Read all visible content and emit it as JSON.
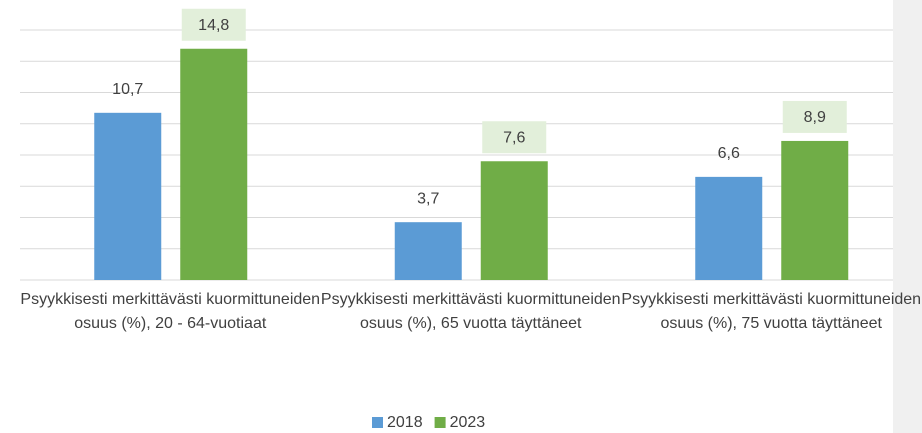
{
  "chart_data": {
    "type": "bar",
    "categories": [
      "Psyykkisesti merkittävästi kuormittuneiden osuus (%), 20 - 64-vuotiaat",
      "Psyykkisesti merkittävästi kuormittuneiden osuus (%), 65 vuotta täyttäneet",
      "Psyykkisesti merkittävästi kuormittuneiden osuus (%), 75 vuotta täyttäneet"
    ],
    "series": [
      {
        "name": "2018",
        "color": "#5b9bd5",
        "values": [
          10.7,
          3.7,
          6.6
        ],
        "value_labels": [
          "10,7",
          "3,7",
          "6,6"
        ]
      },
      {
        "name": "2023",
        "color": "#70ad47",
        "values": [
          14.8,
          7.6,
          8.9
        ],
        "value_labels": [
          "14,8",
          "7,6",
          "8,9"
        ]
      }
    ],
    "ylim": [
      0,
      16
    ],
    "yticks": [
      0,
      2,
      4,
      6,
      8,
      10,
      12,
      14,
      16
    ],
    "grid": true,
    "legend": "bottom"
  }
}
